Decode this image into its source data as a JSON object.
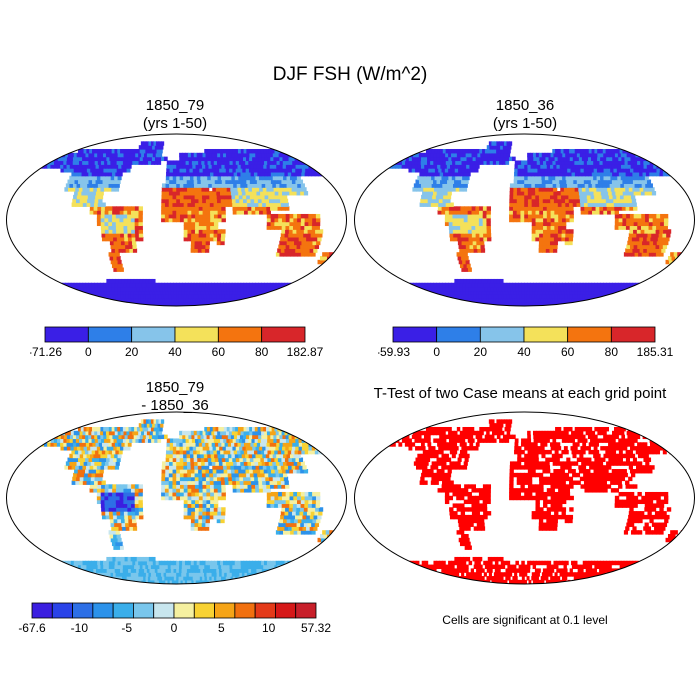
{
  "title": "DJF FSH (W/m^2)",
  "panels": [
    {
      "line1": "1850_79",
      "line2": "(yrs 1-50)",
      "field": "mean",
      "colorbar": {
        "colors": [
          "#3a1fe6",
          "#2e7fe8",
          "#86c4ea",
          "#f4e15a",
          "#f4740f",
          "#d8262a"
        ],
        "labels": [
          "-71.26",
          "0",
          "20",
          "40",
          "60",
          "80",
          "182.87"
        ]
      }
    },
    {
      "line1": "1850_36",
      "line2": "(yrs 1-50)",
      "field": "mean",
      "colorbar": {
        "colors": [
          "#3a1fe6",
          "#2e7fe8",
          "#86c4ea",
          "#f4e15a",
          "#f4740f",
          "#d8262a"
        ],
        "labels": [
          "-59.93",
          "0",
          "20",
          "40",
          "60",
          "80",
          "185.31"
        ]
      }
    },
    {
      "line1": "1850_79",
      "line2": "- 1850_36",
      "field": "difference",
      "colorbar": {
        "colors": [
          "#3b1fe0",
          "#2a43e8",
          "#2d6fe6",
          "#2c92ea",
          "#3aaeea",
          "#79c6ec",
          "#c8e6ee",
          "#f5f0a0",
          "#f8d233",
          "#f5a417",
          "#f1700f",
          "#e43a19",
          "#d61818",
          "#c81f2a"
        ],
        "labels": [
          "-67.6",
          "-10",
          "-5",
          "0",
          "5",
          "10",
          "57.32"
        ]
      }
    },
    {
      "line1": "T-Test of two Case means at each grid point",
      "line2": "",
      "field": "significance"
    }
  ],
  "note": "Cells are significant at 0.1 level",
  "colors": {
    "land_outline": "#000000",
    "significant": "#ff0000"
  }
}
